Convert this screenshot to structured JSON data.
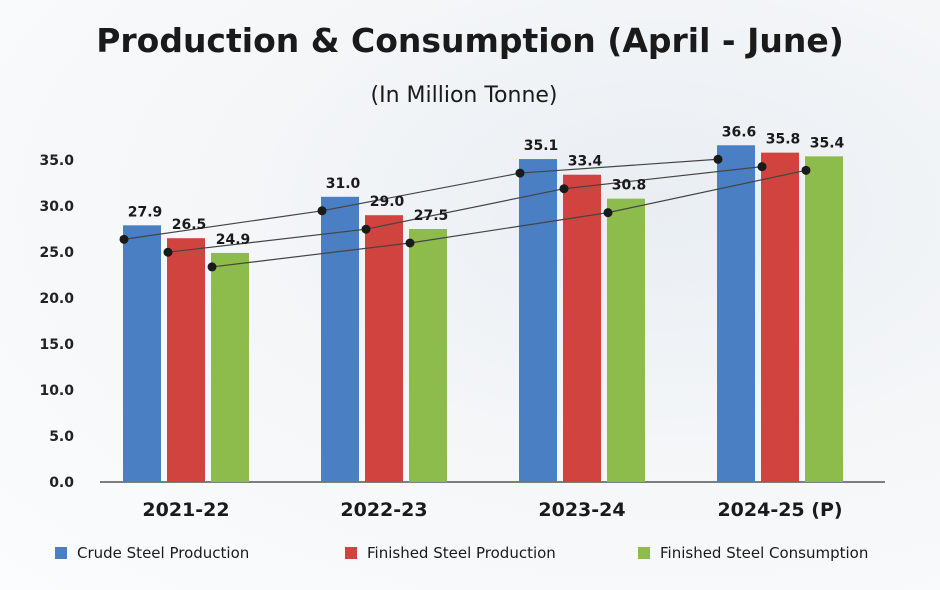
{
  "chart_data": {
    "type": "bar",
    "title": "Production & Consumption (April - June)",
    "subtitle": "(In Million Tonne)",
    "categories": [
      "2021-22",
      "2022-23",
      "2023-24",
      "2024-25 (P)"
    ],
    "series": [
      {
        "name": "Crude Steel Production",
        "values": [
          27.9,
          31.0,
          35.1,
          36.6
        ],
        "labels": [
          "27.9",
          "31.0",
          "35.1",
          "36.6"
        ],
        "color": "#4a7fc4"
      },
      {
        "name": "Finished Steel Production",
        "values": [
          26.5,
          29.0,
          33.4,
          35.8
        ],
        "labels": [
          "26.5",
          "29.0",
          "33.4",
          "35.8"
        ],
        "color": "#d0433e"
      },
      {
        "name": "Finished Steel Consumption",
        "values": [
          24.9,
          27.5,
          30.8,
          35.4
        ],
        "labels": [
          "24.9",
          "27.5",
          "30.8",
          "35.4"
        ],
        "color": "#8dbb4c"
      }
    ],
    "ylim": [
      0,
      35
    ],
    "yticks": [
      "0.0",
      "5.0",
      "10.0",
      "15.0",
      "20.0",
      "25.0",
      "30.0",
      "35.0"
    ],
    "ytick_values": [
      0,
      5,
      10,
      15,
      20,
      25,
      30,
      35
    ],
    "legend_position": "bottom",
    "trend_lines": true,
    "grid": false
  }
}
